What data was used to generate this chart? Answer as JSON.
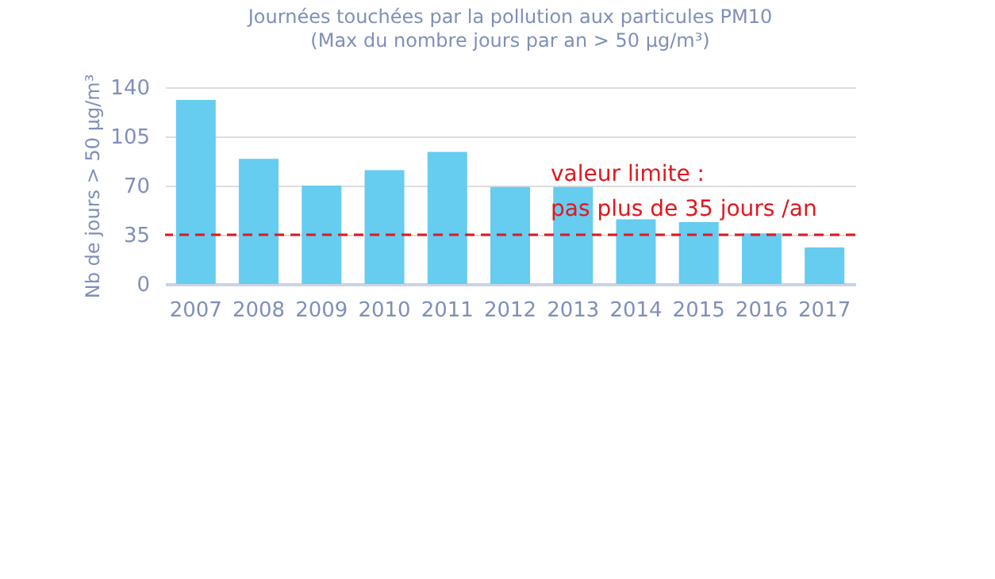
{
  "chart_data": {
    "type": "bar",
    "title": "Journées touchées par la pollution aux particules PM10",
    "subtitle": "(Max du nombre jours par an > 50 µg/m³)",
    "ylabel": "Nb de jours > 50 µg/m³",
    "categories": [
      "2007",
      "2008",
      "2009",
      "2010",
      "2011",
      "2012",
      "2013",
      "2014",
      "2015",
      "2016",
      "2017"
    ],
    "values": [
      131,
      89,
      70,
      81,
      94,
      69,
      69,
      46,
      44,
      36,
      26
    ],
    "color": "#66ccf0",
    "ylim": [
      0,
      140
    ],
    "yticks": [
      0,
      35,
      70,
      105,
      140
    ],
    "grid": "y",
    "ref_lines": [
      {
        "axis": "y",
        "value": 35,
        "label": "valeur limite :\npas plus de 35 jours /an",
        "color": "#e0181f",
        "line_style": "dashed"
      }
    ]
  }
}
